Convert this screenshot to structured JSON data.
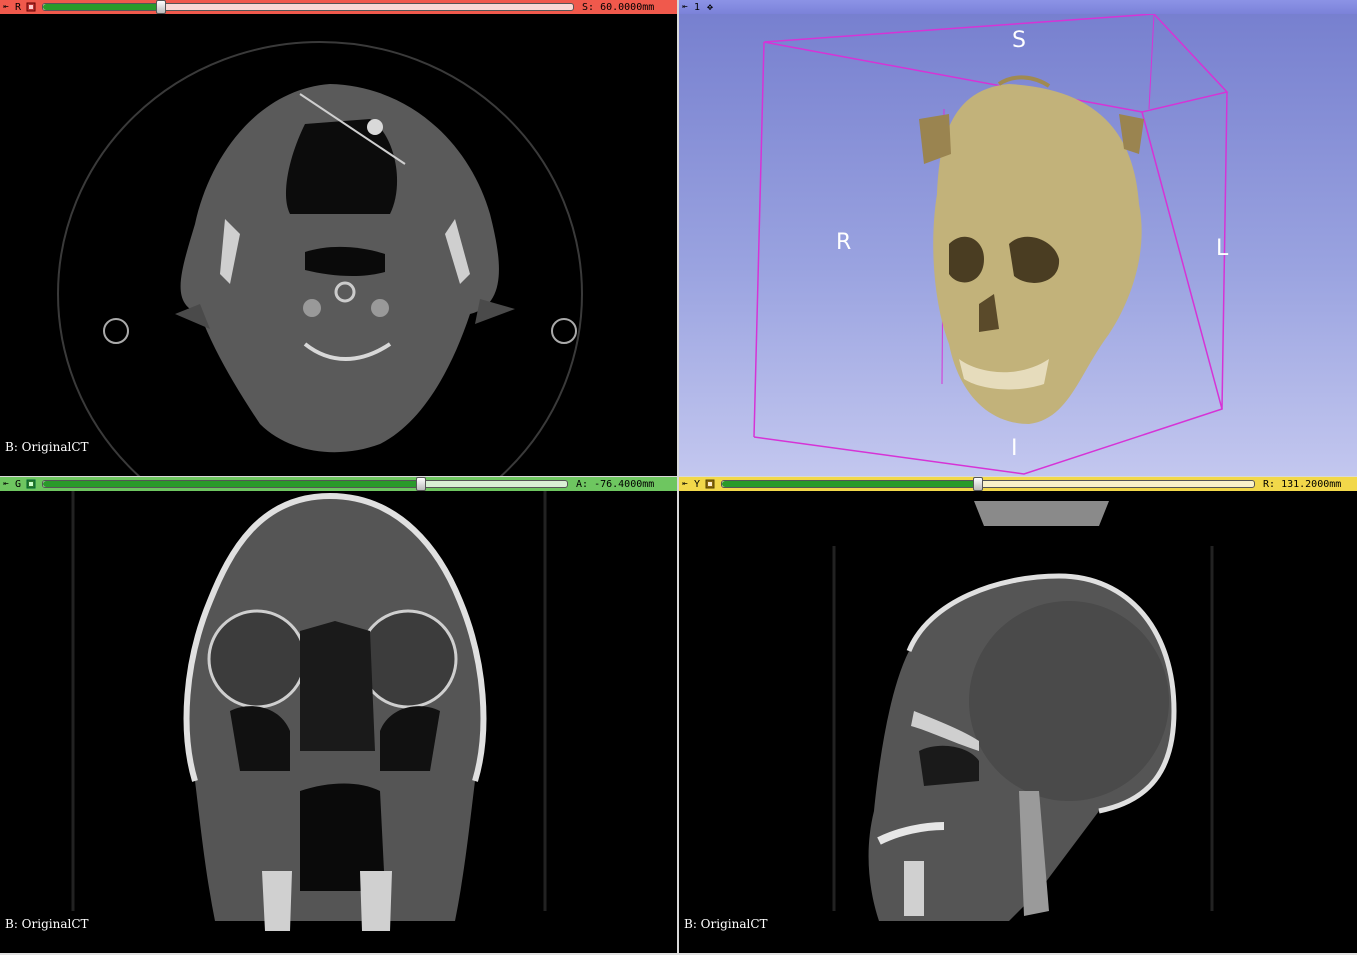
{
  "views": {
    "red": {
      "letter": "R",
      "offset_label": "S:",
      "offset_value": "60.0000mm",
      "slider_fraction": 0.22,
      "background_label": "B: OriginalCT",
      "color": "#f0594c"
    },
    "three_d": {
      "view_number": "1",
      "orientation": {
        "superior": "S",
        "inferior": "I",
        "right": "R",
        "left": "L"
      },
      "color": "#8c93e6"
    },
    "green": {
      "letter": "G",
      "offset_label": "A:",
      "offset_value": "-76.4000mm",
      "slider_fraction": 0.72,
      "background_label": "B: OriginalCT",
      "color": "#6ec660"
    },
    "yellow": {
      "letter": "Y",
      "offset_label": "R:",
      "offset_value": "131.2000mm",
      "slider_fraction": 0.48,
      "background_label": "B: OriginalCT",
      "color": "#f2d84a"
    }
  },
  "icons": {
    "pin": "pin-icon",
    "link": "link-icon",
    "3d_controls": "3d-view-controls-icon"
  },
  "colors": {
    "bone": "#d8d0b0",
    "box": "#d633d6"
  }
}
